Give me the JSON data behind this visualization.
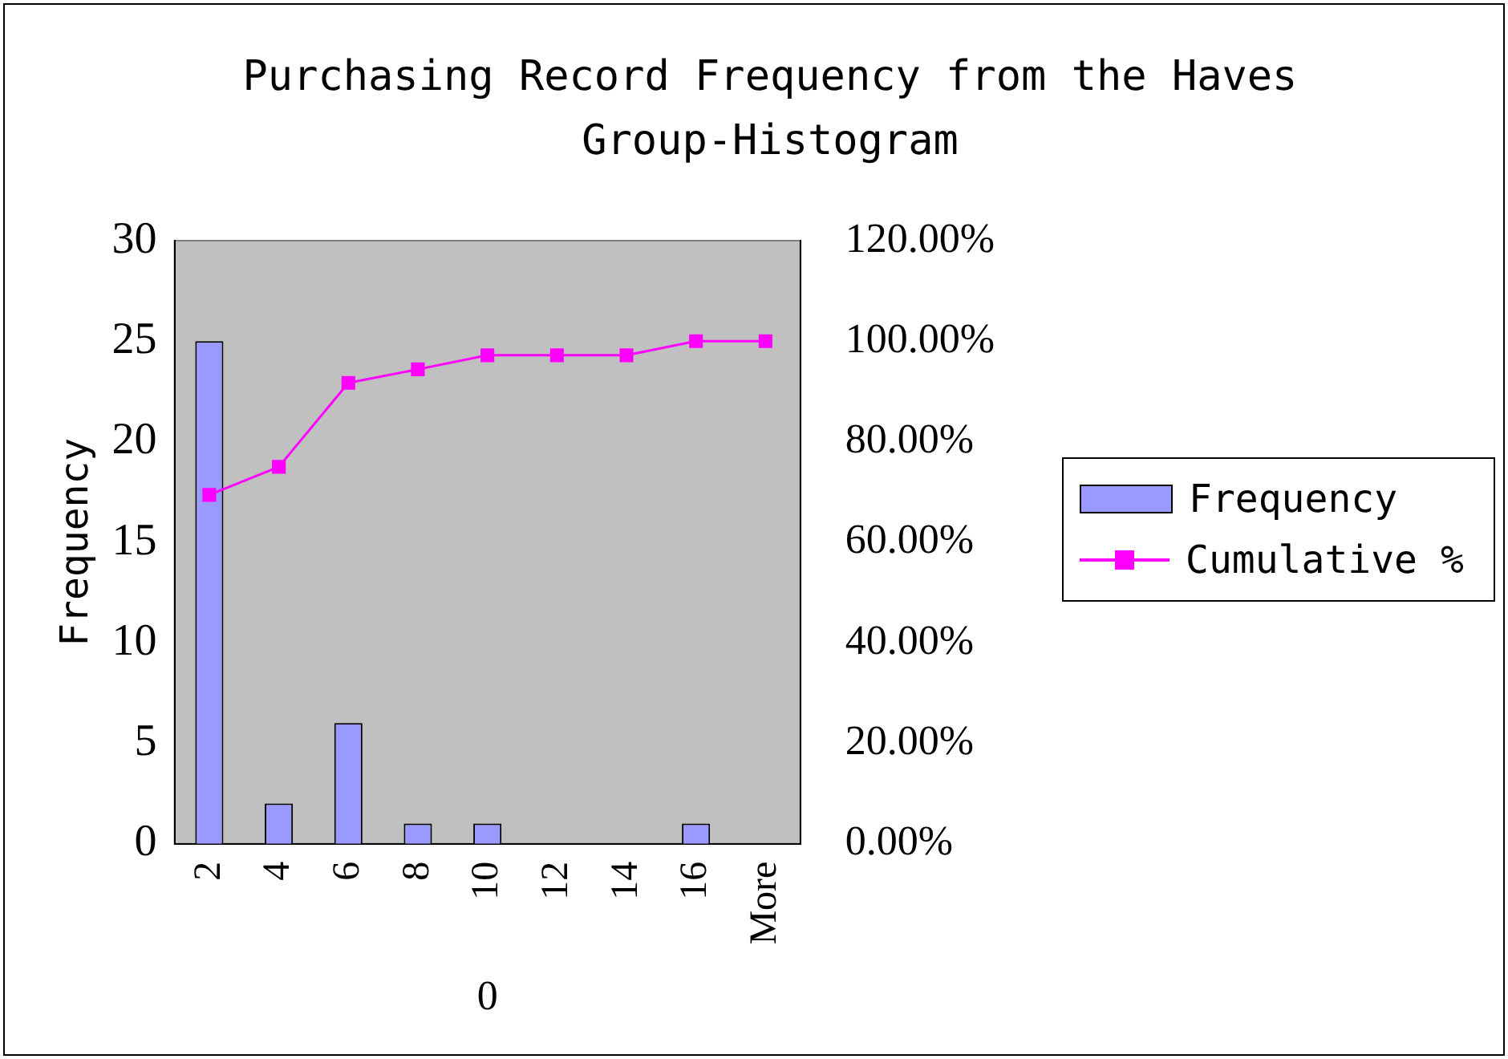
{
  "chart_data": {
    "type": "bar",
    "title": "Purchasing Record Frequency from the Haves Group-Histogram",
    "xlabel": "0",
    "ylabel": "Frequency",
    "categories": [
      "2",
      "4",
      "6",
      "8",
      "10",
      "12",
      "14",
      "16",
      "More"
    ],
    "series": [
      {
        "name": "Frequency",
        "color": "#9999ff",
        "values": [
          25,
          2,
          6,
          1,
          1,
          0,
          0,
          1,
          0
        ]
      },
      {
        "name": "Cumulative %",
        "type": "line",
        "axis": "y2",
        "color": "#ff00ff",
        "values": [
          69.4,
          75,
          91.7,
          94.4,
          97.2,
          97.2,
          97.2,
          100,
          100
        ]
      }
    ],
    "ylim": [
      0,
      30
    ],
    "yticks": [
      0,
      5,
      10,
      15,
      20,
      25,
      30
    ],
    "y2lim": [
      0,
      120
    ],
    "y2ticks": [
      {
        "value": 0,
        "label": "0.00%"
      },
      {
        "value": 20,
        "label": "20.00%"
      },
      {
        "value": 40,
        "label": "40.00%"
      },
      {
        "value": 60,
        "label": "60.00%"
      },
      {
        "value": 80,
        "label": "80.00%"
      },
      {
        "value": 100,
        "label": "100.00%"
      },
      {
        "value": 120,
        "label": "120.00%"
      }
    ],
    "grid": false,
    "legend": "right",
    "marker": "square"
  }
}
